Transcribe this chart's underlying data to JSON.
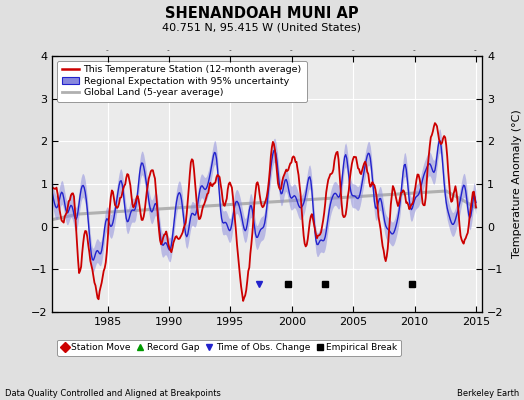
{
  "title": "SHENANDOAH MUNI AP",
  "subtitle": "40.751 N, 95.415 W (United States)",
  "ylabel": "Temperature Anomaly (°C)",
  "footer_left": "Data Quality Controlled and Aligned at Breakpoints",
  "footer_right": "Berkeley Earth",
  "xlim": [
    1980.5,
    2015.5
  ],
  "ylim": [
    -2.0,
    4.0
  ],
  "yticks": [
    -2,
    -1,
    0,
    1,
    2,
    3,
    4
  ],
  "xticks": [
    1985,
    1990,
    1995,
    2000,
    2005,
    2010,
    2015
  ],
  "background_color": "#e0e0e0",
  "plot_bg_color": "#ebebeb",
  "grid_color": "#ffffff",
  "station_line_color": "#cc0000",
  "regional_line_color": "#2222cc",
  "regional_fill_color": "#8888dd",
  "global_line_color": "#b0b0b0",
  "legend_entries": [
    "This Temperature Station (12-month average)",
    "Regional Expectation with 95% uncertainty",
    "Global Land (5-year average)"
  ],
  "empirical_breaks": [
    1999.7,
    2002.7,
    2009.8
  ],
  "time_obs_changes": [
    1997.3
  ],
  "station_moves": [],
  "record_gaps": [],
  "marker_y": -1.35
}
